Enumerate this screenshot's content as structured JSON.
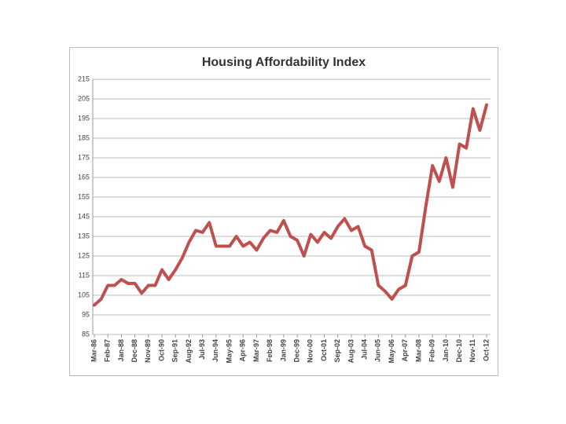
{
  "chart_data": {
    "type": "line",
    "title": "Housing Affordability Index",
    "categories": [
      "Mar-86",
      null,
      "Feb-87",
      null,
      "Jan-88",
      null,
      "Dec-88",
      null,
      "Nov-89",
      null,
      "Oct-90",
      null,
      "Sep-91",
      null,
      "Aug-92",
      null,
      "Jul-93",
      null,
      "Jun-94",
      null,
      "May-95",
      null,
      "Apr-96",
      null,
      "Mar-97",
      null,
      "Feb-98",
      null,
      "Jan-99",
      null,
      "Dec-99",
      null,
      "Nov-00",
      null,
      "Oct-01",
      null,
      "Sep-02",
      null,
      "Aug-03",
      null,
      "Jul-04",
      null,
      "Jun-05",
      null,
      "May-06",
      null,
      "Apr-07",
      null,
      "Mar-08",
      null,
      "Feb-09",
      null,
      "Jan-10",
      null,
      "Dec-10",
      null,
      "Nov-11",
      null,
      "Oct-12"
    ],
    "values": [
      100,
      103,
      110,
      110,
      113,
      111,
      111,
      106,
      110,
      110,
      118,
      113,
      118,
      124,
      132,
      138,
      137,
      142,
      130,
      130,
      130,
      135,
      130,
      132,
      128,
      134,
      138,
      137,
      143,
      135,
      133,
      125,
      136,
      132,
      137,
      134,
      140,
      144,
      138,
      140,
      130,
      128,
      110,
      107,
      103,
      108,
      110,
      125,
      127,
      150,
      171,
      163,
      175,
      160,
      182,
      180,
      200,
      189,
      202
    ],
    "color": "#c0504d",
    "ylim": [
      85,
      215
    ],
    "yticks": [
      85,
      95,
      105,
      115,
      125,
      135,
      145,
      155,
      165,
      175,
      185,
      195,
      205,
      215
    ],
    "grid": true
  }
}
